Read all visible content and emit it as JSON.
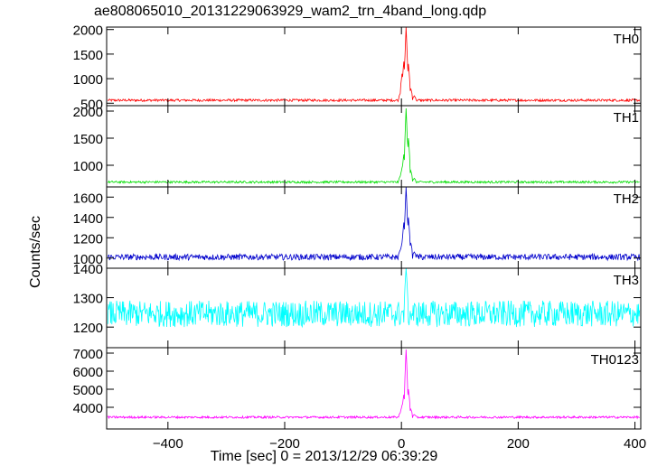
{
  "title": "ae808065010_20131229063929_wam2_trn_4band_long.qdp",
  "ylabel": "Counts/sec",
  "xlabel": "Time [sec] 0 = 2013/12/29 06:39:29",
  "chart_data": {
    "type": "line",
    "title": "ae808065010_20131229063929_wam2_trn_4band_long.qdp",
    "xlabel": "Time [sec] 0 = 2013/12/29 06:39:29",
    "ylabel": "Counts/sec",
    "xlim": [
      -505,
      410
    ],
    "x_ticks": [
      -400,
      -200,
      0,
      200,
      400
    ],
    "grid": false,
    "panels": [
      {
        "name": "TH0",
        "color": "#ff0000",
        "ylim": [
          450,
          2050
        ],
        "y_ticks": [
          500,
          1000,
          1500,
          2000
        ],
        "baseline": 560,
        "noise": 25,
        "peak": [
          {
            "x": -2,
            "y": 700
          },
          {
            "x": 1,
            "y": 1100
          },
          {
            "x": 4,
            "y": 1350
          },
          {
            "x": 8,
            "y": 2050
          },
          {
            "x": 12,
            "y": 1300
          },
          {
            "x": 16,
            "y": 800
          },
          {
            "x": 22,
            "y": 650
          }
        ]
      },
      {
        "name": "TH1",
        "color": "#00dd00",
        "ylim": [
          600,
          2100
        ],
        "y_ticks": [
          1000,
          1500,
          2000
        ],
        "baseline": 690,
        "noise": 20,
        "peak": [
          {
            "x": -2,
            "y": 800
          },
          {
            "x": 1,
            "y": 950
          },
          {
            "x": 4,
            "y": 1200
          },
          {
            "x": 8,
            "y": 2050
          },
          {
            "x": 12,
            "y": 1500
          },
          {
            "x": 16,
            "y": 900
          },
          {
            "x": 22,
            "y": 760
          }
        ]
      },
      {
        "name": "TH2",
        "color": "#0000cc",
        "ylim": [
          900,
          1700
        ],
        "y_ticks": [
          1000,
          1200,
          1400,
          1600
        ],
        "baseline": 1010,
        "noise": 30,
        "peak": [
          {
            "x": -2,
            "y": 1080
          },
          {
            "x": 1,
            "y": 1150
          },
          {
            "x": 4,
            "y": 1350
          },
          {
            "x": 8,
            "y": 1700
          },
          {
            "x": 12,
            "y": 1400
          },
          {
            "x": 16,
            "y": 1150
          },
          {
            "x": 22,
            "y": 1060
          }
        ]
      },
      {
        "name": "TH3",
        "color": "#00ffff",
        "ylim": [
          1130,
          1400
        ],
        "y_ticks": [
          1200,
          1300,
          1400
        ],
        "baseline": 1245,
        "noise": 45,
        "peak": [
          {
            "x": 8,
            "y": 1400
          }
        ]
      },
      {
        "name": "TH0123",
        "color": "#ff00ff",
        "ylim": [
          2800,
          7300
        ],
        "y_ticks": [
          4000,
          5000,
          6000,
          7000
        ],
        "baseline": 3450,
        "noise": 60,
        "peak": [
          {
            "x": -2,
            "y": 3700
          },
          {
            "x": 1,
            "y": 4100
          },
          {
            "x": 4,
            "y": 4700
          },
          {
            "x": 8,
            "y": 7200
          },
          {
            "x": 12,
            "y": 5000
          },
          {
            "x": 16,
            "y": 3900
          },
          {
            "x": 22,
            "y": 3600
          }
        ]
      }
    ]
  }
}
